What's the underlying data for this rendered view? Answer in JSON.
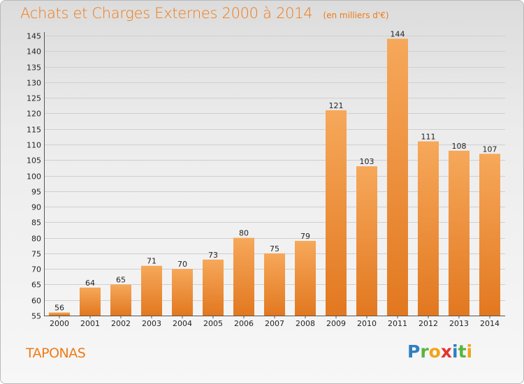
{
  "header": {
    "title": "Achats et Charges Externes 2000 à 2014",
    "unit": "(en milliers d'€)"
  },
  "footer": {
    "commune": "TAPONAS",
    "brand": "Proxiti",
    "brand_letters": [
      {
        "ch": "P",
        "color": "#2f7fc1"
      },
      {
        "ch": "r",
        "color": "#5bb43f"
      },
      {
        "ch": "o",
        "color": "#f2a31b"
      },
      {
        "ch": "x",
        "color": "#e5342b"
      },
      {
        "ch": "i",
        "color": "#2f7fc1"
      },
      {
        "ch": "t",
        "color": "#5bb43f"
      },
      {
        "ch": "i",
        "color": "#f2a31b"
      }
    ]
  },
  "colors": {
    "accent": "#f07a16",
    "bar_light": "#f6a85a",
    "bar_dark": "#e27820",
    "grid": "#cfcfcf"
  },
  "chart_data": {
    "type": "bar",
    "title": "Achats et Charges Externes 2000 à 2014",
    "xlabel": "",
    "ylabel": "",
    "categories": [
      "2000",
      "2001",
      "2002",
      "2003",
      "2004",
      "2005",
      "2006",
      "2007",
      "2008",
      "2009",
      "2010",
      "2011",
      "2012",
      "2013",
      "2014"
    ],
    "values": [
      56,
      64,
      65,
      71,
      70,
      73,
      80,
      75,
      79,
      121,
      103,
      144,
      111,
      108,
      107
    ],
    "ylim": [
      55,
      145
    ],
    "yticks": [
      55,
      60,
      65,
      70,
      75,
      80,
      85,
      90,
      95,
      100,
      105,
      110,
      115,
      120,
      125,
      130,
      135,
      140,
      145
    ],
    "grid": true,
    "legend": "none"
  }
}
